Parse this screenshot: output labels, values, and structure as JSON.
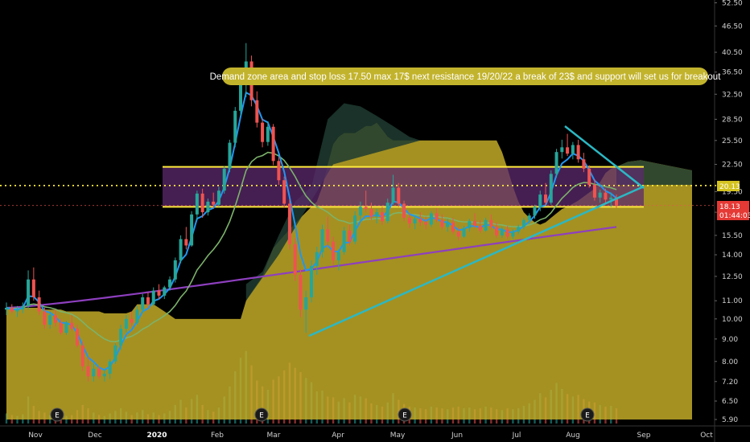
{
  "chart_data": {
    "type": "candlestick",
    "y_axis": {
      "ticks": [
        "52.50",
        "46.50",
        "40.50",
        "36.50",
        "32.50",
        "28.50",
        "25.50",
        "22.50",
        "19.50",
        "17.50",
        "15.50",
        "14.00",
        "12.50",
        "11.00",
        "10.00",
        "9.00",
        "8.00",
        "7.20",
        "6.50",
        "5.90"
      ],
      "scale": "log"
    },
    "x_axis": {
      "labels": [
        {
          "text": "Nov",
          "bold": false
        },
        {
          "text": "Dec",
          "bold": false
        },
        {
          "text": "2020",
          "bold": true
        },
        {
          "text": "Feb",
          "bold": false
        },
        {
          "text": "Mar",
          "bold": false
        },
        {
          "text": "Apr",
          "bold": false
        },
        {
          "text": "May",
          "bold": false
        },
        {
          "text": "Jun",
          "bold": false
        },
        {
          "text": "Jul",
          "bold": false
        },
        {
          "text": "Aug",
          "bold": false
        },
        {
          "text": "Sep",
          "bold": false
        },
        {
          "text": "Oct",
          "bold": false
        }
      ]
    },
    "annotation": "Demand zone area and stop loss 17.50 max 17$ next resistance 19/20/22 a break of 23$ and support will set us for breakout",
    "price_tags": {
      "current_level": "20.13",
      "last_price": "18.13",
      "countdown": "01:44:03"
    },
    "earnings_markers": [
      "E",
      "E",
      "E",
      "E"
    ],
    "zone": {
      "low": 18.0,
      "high": 22.2,
      "mid": 20.13
    },
    "trendline_support": {
      "from": {
        "date": "2020-03-16",
        "price": 9.3
      },
      "to": {
        "date": "2020-08-28",
        "price": 18.6
      }
    },
    "trendline_resistance": {
      "from": {
        "date": "2020-07-22",
        "price": 27.5
      },
      "to": {
        "date": "2020-08-28",
        "price": 19.6
      }
    },
    "colors": {
      "up": "#26a69a",
      "down": "#ef5350",
      "ema_fast": "#2196f3",
      "ema_mid": "#7cb36b",
      "ema_slow": "#8e3fbf",
      "zone_border": "#ffeb3b",
      "zone_fill": "#5c2a6e",
      "cloud_fill": "#c8b12a",
      "trend": "#2bb8c4",
      "annotation_bg": "#c2b32c",
      "price_tag_level": "#d4c21f",
      "price_tag_last": "#e53935"
    },
    "candles": [
      {
        "o": 10.5,
        "h": 10.9,
        "l": 10.2,
        "c": 10.6
      },
      {
        "o": 10.6,
        "h": 10.8,
        "l": 10.3,
        "c": 10.4
      },
      {
        "o": 10.4,
        "h": 10.7,
        "l": 10.1,
        "c": 10.5
      },
      {
        "o": 10.5,
        "h": 10.9,
        "l": 10.3,
        "c": 10.7
      },
      {
        "o": 10.7,
        "h": 12.9,
        "l": 10.5,
        "c": 12.3
      },
      {
        "o": 12.3,
        "h": 13.1,
        "l": 11.0,
        "c": 11.2
      },
      {
        "o": 11.2,
        "h": 11.6,
        "l": 10.2,
        "c": 10.4
      },
      {
        "o": 10.4,
        "h": 10.6,
        "l": 9.5,
        "c": 9.7
      },
      {
        "o": 9.7,
        "h": 10.4,
        "l": 9.5,
        "c": 10.2
      },
      {
        "o": 10.2,
        "h": 10.5,
        "l": 9.6,
        "c": 9.8
      },
      {
        "o": 9.8,
        "h": 10.0,
        "l": 9.2,
        "c": 9.3
      },
      {
        "o": 9.3,
        "h": 9.9,
        "l": 9.2,
        "c": 9.8
      },
      {
        "o": 9.8,
        "h": 10.2,
        "l": 9.4,
        "c": 9.5
      },
      {
        "o": 9.5,
        "h": 9.7,
        "l": 8.6,
        "c": 8.7
      },
      {
        "o": 8.7,
        "h": 8.9,
        "l": 7.6,
        "c": 7.8
      },
      {
        "o": 7.8,
        "h": 8.2,
        "l": 7.2,
        "c": 7.4
      },
      {
        "o": 7.4,
        "h": 7.9,
        "l": 7.2,
        "c": 7.7
      },
      {
        "o": 7.7,
        "h": 7.8,
        "l": 7.3,
        "c": 7.4
      },
      {
        "o": 7.4,
        "h": 7.7,
        "l": 7.2,
        "c": 7.5
      },
      {
        "o": 7.5,
        "h": 8.1,
        "l": 7.3,
        "c": 8.0
      },
      {
        "o": 8.0,
        "h": 8.8,
        "l": 7.9,
        "c": 8.7
      },
      {
        "o": 8.7,
        "h": 9.7,
        "l": 8.5,
        "c": 9.5
      },
      {
        "o": 9.5,
        "h": 10.2,
        "l": 9.3,
        "c": 10.0
      },
      {
        "o": 10.0,
        "h": 10.4,
        "l": 9.6,
        "c": 9.8
      },
      {
        "o": 9.8,
        "h": 10.7,
        "l": 9.7,
        "c": 10.5
      },
      {
        "o": 10.5,
        "h": 11.4,
        "l": 10.3,
        "c": 11.2
      },
      {
        "o": 11.2,
        "h": 11.5,
        "l": 10.6,
        "c": 10.8
      },
      {
        "o": 10.8,
        "h": 11.8,
        "l": 10.7,
        "c": 11.6
      },
      {
        "o": 11.6,
        "h": 12.0,
        "l": 11.1,
        "c": 11.3
      },
      {
        "o": 11.3,
        "h": 11.9,
        "l": 11.1,
        "c": 11.8
      },
      {
        "o": 11.8,
        "h": 12.5,
        "l": 11.6,
        "c": 12.3
      },
      {
        "o": 12.3,
        "h": 13.8,
        "l": 12.1,
        "c": 13.6
      },
      {
        "o": 13.6,
        "h": 15.5,
        "l": 13.4,
        "c": 15.2
      },
      {
        "o": 15.2,
        "h": 16.2,
        "l": 14.4,
        "c": 14.7
      },
      {
        "o": 14.7,
        "h": 17.6,
        "l": 14.6,
        "c": 17.3
      },
      {
        "o": 17.3,
        "h": 19.6,
        "l": 16.8,
        "c": 19.3
      },
      {
        "o": 19.3,
        "h": 19.8,
        "l": 17.0,
        "c": 17.5
      },
      {
        "o": 17.5,
        "h": 18.8,
        "l": 17.2,
        "c": 18.5
      },
      {
        "o": 18.5,
        "h": 19.4,
        "l": 17.9,
        "c": 18.2
      },
      {
        "o": 18.2,
        "h": 20.0,
        "l": 18.0,
        "c": 19.6
      },
      {
        "o": 19.6,
        "h": 22.3,
        "l": 19.3,
        "c": 22.0
      },
      {
        "o": 22.0,
        "h": 25.6,
        "l": 21.6,
        "c": 25.2
      },
      {
        "o": 25.2,
        "h": 30.4,
        "l": 24.6,
        "c": 29.8
      },
      {
        "o": 29.8,
        "h": 35.8,
        "l": 29.0,
        "c": 34.6
      },
      {
        "o": 34.6,
        "h": 42.5,
        "l": 32.0,
        "c": 38.6
      },
      {
        "o": 38.6,
        "h": 39.8,
        "l": 30.5,
        "c": 31.5
      },
      {
        "o": 31.5,
        "h": 33.0,
        "l": 27.3,
        "c": 28.0
      },
      {
        "o": 28.0,
        "h": 28.6,
        "l": 24.6,
        "c": 25.3
      },
      {
        "o": 25.3,
        "h": 28.2,
        "l": 24.8,
        "c": 27.4
      },
      {
        "o": 27.4,
        "h": 27.8,
        "l": 22.4,
        "c": 22.9
      },
      {
        "o": 22.9,
        "h": 23.4,
        "l": 20.2,
        "c": 20.7
      },
      {
        "o": 20.7,
        "h": 21.1,
        "l": 17.9,
        "c": 18.3
      },
      {
        "o": 18.3,
        "h": 18.7,
        "l": 14.4,
        "c": 14.8
      },
      {
        "o": 14.8,
        "h": 15.3,
        "l": 12.2,
        "c": 12.6
      },
      {
        "o": 12.6,
        "h": 13.0,
        "l": 10.1,
        "c": 10.5
      },
      {
        "o": 10.5,
        "h": 11.6,
        "l": 9.3,
        "c": 11.2
      },
      {
        "o": 11.2,
        "h": 13.6,
        "l": 10.9,
        "c": 13.2
      },
      {
        "o": 13.2,
        "h": 14.6,
        "l": 12.6,
        "c": 14.2
      },
      {
        "o": 14.2,
        "h": 16.4,
        "l": 13.8,
        "c": 16.0
      },
      {
        "o": 16.0,
        "h": 17.1,
        "l": 14.6,
        "c": 15.0
      },
      {
        "o": 15.0,
        "h": 15.4,
        "l": 13.3,
        "c": 13.6
      },
      {
        "o": 13.6,
        "h": 14.4,
        "l": 12.9,
        "c": 14.2
      },
      {
        "o": 14.2,
        "h": 16.2,
        "l": 14.0,
        "c": 15.9
      },
      {
        "o": 15.9,
        "h": 16.4,
        "l": 14.7,
        "c": 15.0
      },
      {
        "o": 15.0,
        "h": 17.6,
        "l": 14.8,
        "c": 17.2
      },
      {
        "o": 17.2,
        "h": 18.5,
        "l": 16.6,
        "c": 18.0
      },
      {
        "o": 18.0,
        "h": 19.6,
        "l": 17.5,
        "c": 17.8
      },
      {
        "o": 17.8,
        "h": 18.4,
        "l": 16.8,
        "c": 17.1
      },
      {
        "o": 17.1,
        "h": 17.8,
        "l": 16.5,
        "c": 17.5
      },
      {
        "o": 17.5,
        "h": 18.0,
        "l": 16.4,
        "c": 16.7
      },
      {
        "o": 16.7,
        "h": 18.8,
        "l": 16.5,
        "c": 18.4
      },
      {
        "o": 18.4,
        "h": 21.3,
        "l": 18.2,
        "c": 19.9
      },
      {
        "o": 19.9,
        "h": 20.4,
        "l": 18.0,
        "c": 18.3
      },
      {
        "o": 18.3,
        "h": 18.6,
        "l": 16.7,
        "c": 17.0
      },
      {
        "o": 17.0,
        "h": 17.4,
        "l": 16.1,
        "c": 16.5
      },
      {
        "o": 16.5,
        "h": 17.2,
        "l": 16.0,
        "c": 16.9
      },
      {
        "o": 16.9,
        "h": 17.5,
        "l": 16.3,
        "c": 16.6
      },
      {
        "o": 16.6,
        "h": 17.1,
        "l": 16.0,
        "c": 16.4
      },
      {
        "o": 16.4,
        "h": 17.6,
        "l": 16.2,
        "c": 17.4
      },
      {
        "o": 17.4,
        "h": 17.9,
        "l": 16.6,
        "c": 16.8
      },
      {
        "o": 16.8,
        "h": 17.3,
        "l": 16.0,
        "c": 16.2
      },
      {
        "o": 16.2,
        "h": 16.9,
        "l": 15.8,
        "c": 16.6
      },
      {
        "o": 16.6,
        "h": 17.0,
        "l": 15.6,
        "c": 15.8
      },
      {
        "o": 15.8,
        "h": 16.2,
        "l": 15.1,
        "c": 15.4
      },
      {
        "o": 15.4,
        "h": 16.3,
        "l": 15.3,
        "c": 16.1
      },
      {
        "o": 16.1,
        "h": 16.9,
        "l": 15.8,
        "c": 16.7
      },
      {
        "o": 16.7,
        "h": 17.4,
        "l": 16.1,
        "c": 16.3
      },
      {
        "o": 16.3,
        "h": 16.8,
        "l": 15.7,
        "c": 15.9
      },
      {
        "o": 15.9,
        "h": 17.0,
        "l": 15.8,
        "c": 16.8
      },
      {
        "o": 16.8,
        "h": 17.3,
        "l": 16.0,
        "c": 16.2
      },
      {
        "o": 16.2,
        "h": 16.6,
        "l": 15.3,
        "c": 15.5
      },
      {
        "o": 15.5,
        "h": 16.2,
        "l": 15.3,
        "c": 16.0
      },
      {
        "o": 16.0,
        "h": 16.3,
        "l": 15.2,
        "c": 15.4
      },
      {
        "o": 15.4,
        "h": 16.0,
        "l": 15.2,
        "c": 15.8
      },
      {
        "o": 15.8,
        "h": 16.4,
        "l": 15.6,
        "c": 16.2
      },
      {
        "o": 16.2,
        "h": 17.0,
        "l": 16.0,
        "c": 16.8
      },
      {
        "o": 16.8,
        "h": 17.4,
        "l": 16.5,
        "c": 17.2
      },
      {
        "o": 17.2,
        "h": 18.2,
        "l": 16.9,
        "c": 18.0
      },
      {
        "o": 18.0,
        "h": 19.6,
        "l": 17.6,
        "c": 19.2
      },
      {
        "o": 19.2,
        "h": 20.4,
        "l": 18.1,
        "c": 18.4
      },
      {
        "o": 18.4,
        "h": 21.8,
        "l": 18.2,
        "c": 21.4
      },
      {
        "o": 21.4,
        "h": 24.4,
        "l": 21.0,
        "c": 24.0
      },
      {
        "o": 24.0,
        "h": 25.6,
        "l": 23.2,
        "c": 24.6
      },
      {
        "o": 24.6,
        "h": 26.4,
        "l": 23.5,
        "c": 23.8
      },
      {
        "o": 23.8,
        "h": 25.3,
        "l": 23.1,
        "c": 24.9
      },
      {
        "o": 24.9,
        "h": 25.6,
        "l": 22.7,
        "c": 23.1
      },
      {
        "o": 23.1,
        "h": 23.9,
        "l": 21.6,
        "c": 22.0
      },
      {
        "o": 22.0,
        "h": 22.4,
        "l": 19.9,
        "c": 20.2
      },
      {
        "o": 20.2,
        "h": 20.8,
        "l": 18.6,
        "c": 18.9
      },
      {
        "o": 18.9,
        "h": 19.7,
        "l": 18.4,
        "c": 19.4
      },
      {
        "o": 19.4,
        "h": 19.8,
        "l": 18.4,
        "c": 18.7
      },
      {
        "o": 18.7,
        "h": 19.4,
        "l": 18.0,
        "c": 18.9
      },
      {
        "o": 18.9,
        "h": 19.2,
        "l": 17.9,
        "c": 18.13
      }
    ],
    "volume": [
      1.2,
      1.0,
      0.9,
      1.1,
      3.2,
      2.1,
      1.5,
      1.3,
      1.0,
      1.1,
      1.4,
      0.9,
      1.0,
      1.6,
      2.2,
      1.8,
      1.3,
      1.0,
      0.9,
      1.2,
      1.5,
      1.8,
      1.4,
      1.0,
      1.3,
      1.6,
      1.1,
      1.3,
      1.0,
      1.2,
      1.5,
      2.2,
      2.8,
      1.9,
      2.9,
      3.4,
      2.2,
      1.6,
      1.4,
      1.9,
      3.2,
      4.4,
      6.2,
      7.8,
      8.6,
      6.9,
      5.1,
      4.4,
      4.0,
      5.2,
      5.6,
      6.3,
      7.2,
      6.6,
      6.1,
      5.4,
      4.9,
      3.8,
      3.9,
      3.2,
      3.1,
      2.6,
      3.0,
      2.5,
      3.4,
      3.2,
      3.0,
      2.4,
      2.2,
      2.0,
      2.5,
      3.6,
      2.8,
      2.3,
      2.0,
      1.9,
      1.8,
      1.7,
      2.0,
      1.9,
      1.8,
      1.7,
      1.9,
      2.0,
      1.8,
      1.9,
      1.7,
      1.8,
      2.0,
      1.9,
      1.7,
      1.6,
      1.8,
      1.7,
      1.8,
      2.1,
      2.4,
      2.8,
      3.6,
      3.1,
      4.0,
      4.8,
      4.1,
      3.5,
      3.2,
      3.4,
      2.9,
      2.6,
      2.5,
      2.2,
      2.0,
      2.1,
      1.8
    ]
  }
}
